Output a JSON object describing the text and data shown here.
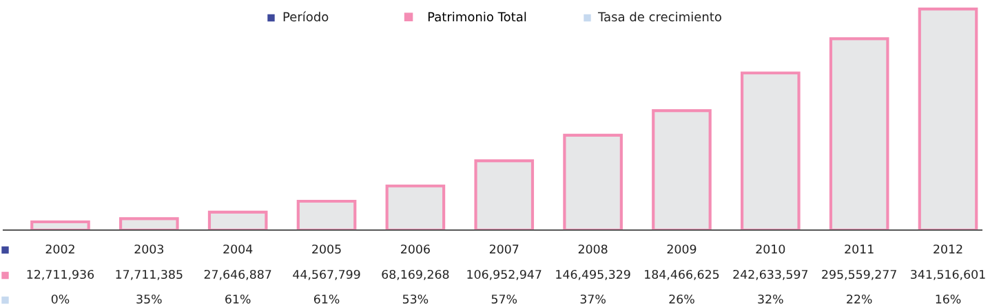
{
  "chart_data": {
    "type": "bar",
    "categories": [
      "2002",
      "2003",
      "2004",
      "2005",
      "2006",
      "2007",
      "2008",
      "2009",
      "2010",
      "2011",
      "2012"
    ],
    "tick_labels": "x",
    "legend": "top",
    "series": [
      {
        "name": "Patrimonio Total",
        "color": "#f48db4",
        "colors": [
          "#e6e7e8",
          "#e6e7e8",
          "#e6e7e8",
          "#e6e7e8",
          "#e6e7e8",
          "#e6e7e8",
          "#e6e7e8",
          "#e6e7e8",
          "#e6e7e8",
          "#e6e7e8",
          "#e6e7e8"
        ],
        "values": [
          12711936,
          17711385,
          27646887,
          44567799,
          68169268,
          106952947,
          146495329,
          184466625,
          242633597,
          295559277,
          341516601
        ],
        "value_labels": [
          "12,711,936",
          "17,711,385",
          "27,646,887",
          "44,567,799",
          "68,169,268",
          "106,952,947",
          "146,495,329",
          "184,466,625",
          "242,633,597",
          "295,559,277",
          "341,516,601"
        ]
      }
    ],
    "annotations": [
      "Período",
      "Tasa de crecimiento",
      "0%",
      "35%",
      "61%",
      "61%",
      "53%",
      "57%",
      "37%",
      "26%",
      "32%",
      "22%",
      "16%"
    ]
  }
}
